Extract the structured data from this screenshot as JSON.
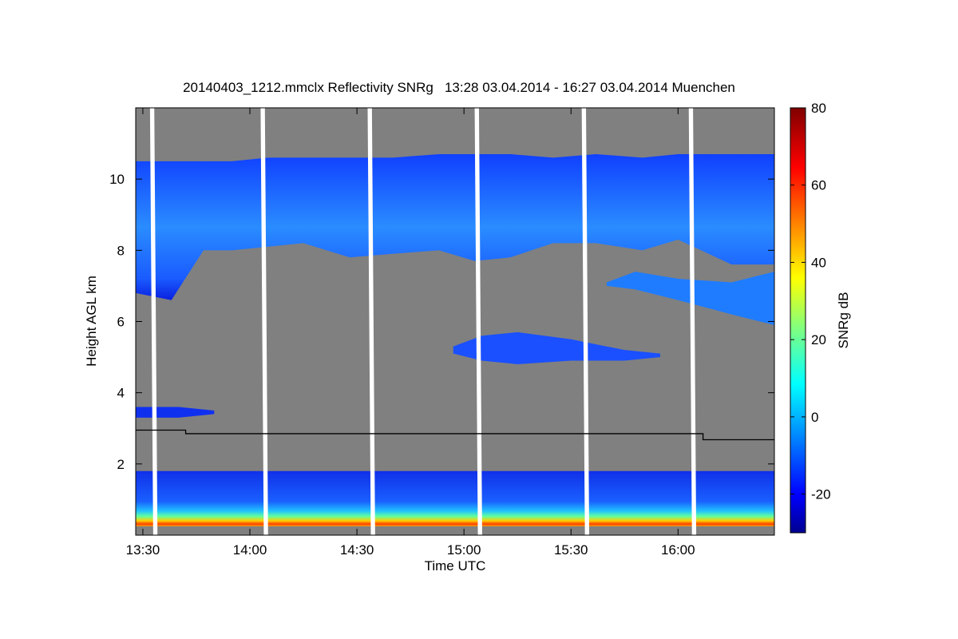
{
  "chart_data": {
    "type": "heatmap",
    "title": "20140403_1212.mmclx Reflectivity SNRg   13:28 03.04.2014 - 16:27 03.04.2014 Muenchen",
    "xlabel": "Time UTC",
    "ylabel": "Height AGL km",
    "colorbar_label": "SNRg dB",
    "x_ticks": [
      "13:30",
      "14:00",
      "14:30",
      "15:00",
      "15:30",
      "16:00"
    ],
    "x_tick_minutes": [
      810,
      840,
      870,
      900,
      930,
      960
    ],
    "xlim_minutes": [
      808,
      987
    ],
    "y_ticks": [
      2,
      4,
      6,
      8,
      10
    ],
    "ylim": [
      0,
      12
    ],
    "colorbar_ticks": [
      80,
      60,
      40,
      20,
      0,
      -20
    ],
    "colorbar_ticks_labels": [
      "80",
      "60",
      "40",
      "20",
      "0",
      "-20"
    ],
    "colorbar_range": [
      -30,
      80
    ],
    "background_color": "#808080",
    "colormap": [
      "#00008f",
      "#0000ff",
      "#0080ff",
      "#00ffff",
      "#80ff80",
      "#ffff00",
      "#ff8000",
      "#ff0000",
      "#800000"
    ],
    "gaps_minutes": [
      812,
      843,
      873,
      903,
      933,
      963
    ],
    "cloud_layers": [
      {
        "name": "cirrus",
        "base_km": [
          6.8,
          6.6,
          8.0,
          8.0,
          8.1,
          8.2,
          7.8,
          7.9,
          8.0,
          7.7,
          7.8,
          8.2,
          8.2,
          8.0,
          8.3,
          7.6,
          7.6
        ],
        "top_km": [
          10.5,
          10.5,
          10.5,
          10.5,
          10.6,
          10.6,
          10.6,
          10.6,
          10.7,
          10.7,
          10.7,
          10.6,
          10.7,
          10.6,
          10.7,
          10.7,
          10.7
        ],
        "minutes": [
          808,
          818,
          827,
          835,
          845,
          855,
          868,
          880,
          893,
          903,
          913,
          925,
          937,
          950,
          960,
          975,
          987
        ]
      },
      {
        "name": "mid-level",
        "base_km": [
          5.1,
          4.9,
          4.8,
          4.9,
          4.9,
          5.0
        ],
        "top_km": [
          5.3,
          5.6,
          5.7,
          5.5,
          5.2,
          5.1
        ],
        "minutes": [
          897,
          905,
          915,
          930,
          945,
          955
        ]
      },
      {
        "name": "altostratus",
        "base_km": [
          7.0,
          6.9,
          6.6,
          6.2,
          5.9
        ],
        "top_km": [
          7.1,
          7.4,
          7.2,
          7.1,
          7.4
        ],
        "minutes": [
          940,
          948,
          960,
          975,
          987
        ]
      },
      {
        "name": "low-level",
        "base_km": [
          3.3,
          3.3,
          3.4
        ],
        "top_km": [
          3.6,
          3.6,
          3.5
        ],
        "minutes": [
          808,
          820,
          830
        ]
      },
      {
        "name": "boundary-layer",
        "base_km": [
          0.25,
          0.25,
          0.25
        ],
        "top_km": [
          1.8,
          1.8,
          1.8
        ],
        "minutes": [
          808,
          900,
          987
        ]
      }
    ],
    "boundary_line_km": [
      [
        808,
        2.95
      ],
      [
        822,
        2.95
      ],
      [
        822,
        2.85
      ],
      [
        967,
        2.85
      ],
      [
        967,
        2.68
      ],
      [
        987,
        2.68
      ]
    ]
  }
}
